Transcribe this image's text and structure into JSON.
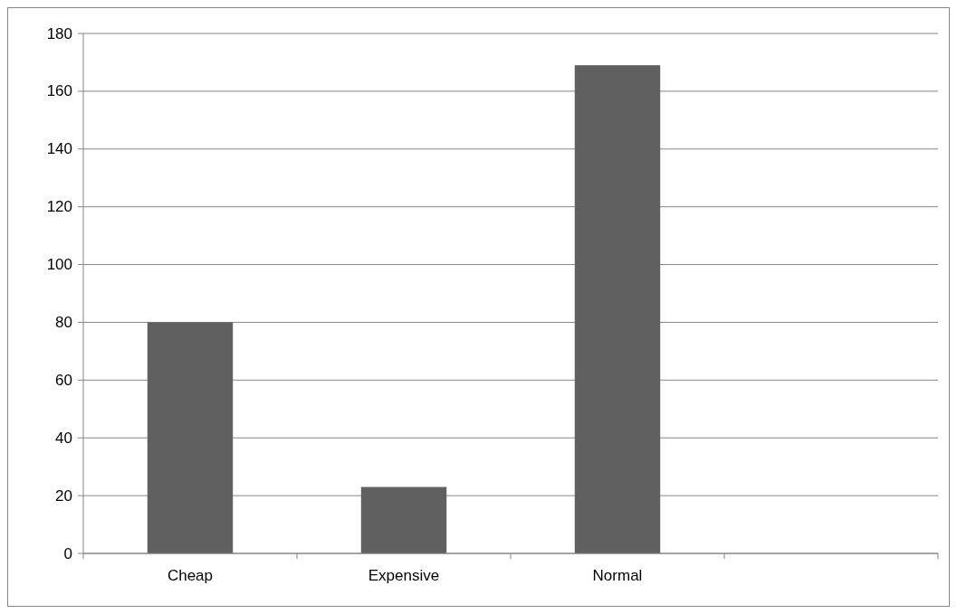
{
  "chart_data": {
    "type": "bar",
    "categories": [
      "Cheap",
      "Expensive",
      "Normal",
      null
    ],
    "values": [
      80,
      23,
      169,
      null
    ],
    "color": "#606060",
    "ylim": [
      0,
      180
    ],
    "yticks": [
      0,
      20,
      40,
      60,
      80,
      100,
      120,
      140,
      160,
      180
    ],
    "grid": "y"
  }
}
